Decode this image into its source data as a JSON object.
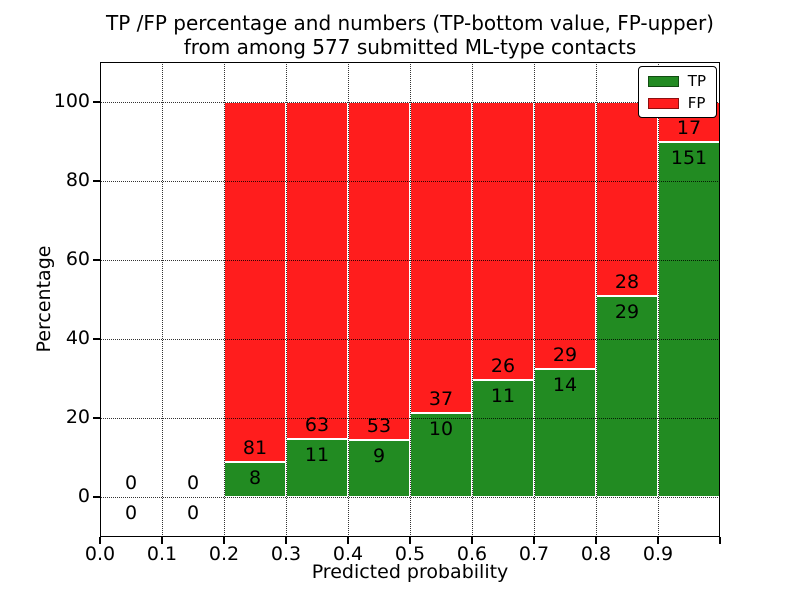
{
  "title": {
    "line1": "TP /FP percentage and numbers (TP-bottom value, FP-upper)",
    "line2": "from among 577 submitted ML-type contacts"
  },
  "chart_data": {
    "type": "bar",
    "stacked": true,
    "title": "TP /FP percentage and numbers (TP-bottom value, FP-upper)\nfrom among 577 submitted ML-type contacts",
    "xlabel": "Predicted probability",
    "ylabel": "Percentage",
    "xlim": [
      0.0,
      1.0
    ],
    "ylim": [
      -10,
      110
    ],
    "grid": true,
    "grid_style": "dotted",
    "total_contacts": 577,
    "y_ticks": [
      0,
      20,
      40,
      60,
      80,
      100
    ],
    "x_ticks": [
      {
        "value": 0.0,
        "label": "0.0"
      },
      {
        "value": 0.1,
        "label": "0.1"
      },
      {
        "value": 0.2,
        "label": "0.2"
      },
      {
        "value": 0.3,
        "label": "0.3"
      },
      {
        "value": 0.4,
        "label": "0.4"
      },
      {
        "value": 0.5,
        "label": "0.5"
      },
      {
        "value": 0.6,
        "label": "0.6"
      },
      {
        "value": 0.7,
        "label": "0.7"
      },
      {
        "value": 0.8,
        "label": "0.8"
      },
      {
        "value": 0.9,
        "label": "0.9"
      },
      {
        "value": 1.0,
        "label": ""
      }
    ],
    "bins": [
      {
        "range": [
          0.0,
          0.1
        ],
        "tp": 0,
        "fp": 0
      },
      {
        "range": [
          0.1,
          0.2
        ],
        "tp": 0,
        "fp": 0
      },
      {
        "range": [
          0.2,
          0.3
        ],
        "tp": 8,
        "fp": 81
      },
      {
        "range": [
          0.3,
          0.4
        ],
        "tp": 11,
        "fp": 63
      },
      {
        "range": [
          0.4,
          0.5
        ],
        "tp": 9,
        "fp": 53
      },
      {
        "range": [
          0.5,
          0.6
        ],
        "tp": 10,
        "fp": 37
      },
      {
        "range": [
          0.6,
          0.7
        ],
        "tp": 11,
        "fp": 26
      },
      {
        "range": [
          0.7,
          0.8
        ],
        "tp": 14,
        "fp": 29
      },
      {
        "range": [
          0.8,
          0.9
        ],
        "tp": 29,
        "fp": 28
      },
      {
        "range": [
          0.9,
          1.0
        ],
        "tp": 151,
        "fp": 17
      }
    ],
    "colors": {
      "tp": "#228b22",
      "fp": "#ff1d1d",
      "bar_edge": "#ffffff"
    },
    "legend": {
      "position": "upper right",
      "entries": [
        {
          "label": "TP",
          "color": "#228b22"
        },
        {
          "label": "FP",
          "color": "#ff1d1d"
        }
      ]
    }
  }
}
